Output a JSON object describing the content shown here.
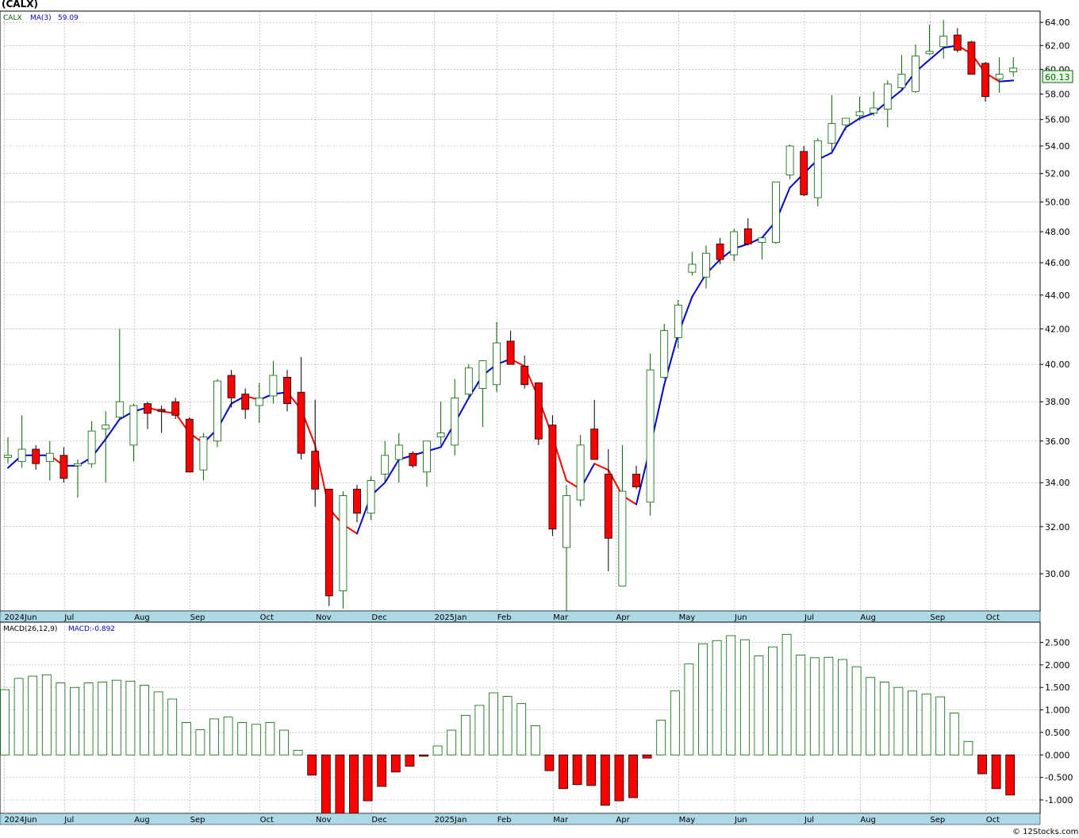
{
  "title": "(CALX)",
  "footer": "© 12Stocks.com",
  "colors": {
    "up_candle_stroke": "#006400",
    "down_candle_fill": "#ff0000",
    "ma_line_up": "#0000cc",
    "ma_line_down": "#ff0000",
    "macd_pos_stroke": "#006400",
    "macd_neg_fill": "#ff0000",
    "grid": "#a0a0a0",
    "axis_band": "#add8e6",
    "price_box_border": "#006400",
    "price_box_fill": "#e6ffe6"
  },
  "chart_data": [
    {
      "type": "candlestick",
      "name": "price",
      "legend": {
        "ticker": "CALX",
        "ma_label": "MA(3)",
        "ma_value": "59.09"
      },
      "last_price_label": "60.13",
      "ylim": [
        28.5,
        65
      ],
      "y_ticks": [
        "30.00",
        "32.00",
        "34.00",
        "36.00",
        "38.00",
        "40.00",
        "42.00",
        "44.00",
        "46.00",
        "48.00",
        "50.00",
        "52.00",
        "54.00",
        "56.00",
        "58.00",
        "60.00",
        "62.00",
        "64.00"
      ],
      "x_labels": [
        "2024Jun",
        "Jul",
        "Aug",
        "Sep",
        "Oct",
        "Nov",
        "Dec",
        "2025Jan",
        "Feb",
        "Mar",
        "Apr",
        "May",
        "Jun",
        "Jul",
        "Aug",
        "Sep",
        "Oct"
      ],
      "x_label_weeks": [
        0.2,
        4.5,
        9.5,
        13.5,
        18.5,
        22.5,
        26.5,
        31,
        35.5,
        39.5,
        44,
        48.5,
        52.5,
        57.5,
        61.5,
        66.5,
        70.5
      ],
      "candles": [
        {
          "o": 35.2,
          "h": 36.2,
          "l": 34.9,
          "c": 35.3
        },
        {
          "o": 35.0,
          "h": 37.3,
          "l": 34.7,
          "c": 35.6
        },
        {
          "o": 35.6,
          "h": 35.8,
          "l": 34.6,
          "c": 34.9
        },
        {
          "o": 35.0,
          "h": 36.0,
          "l": 34.1,
          "c": 35.4
        },
        {
          "o": 35.3,
          "h": 35.7,
          "l": 34.0,
          "c": 34.2
        },
        {
          "o": 34.8,
          "h": 35.1,
          "l": 33.3,
          "c": 34.9
        },
        {
          "o": 34.9,
          "h": 37.0,
          "l": 34.7,
          "c": 36.5
        },
        {
          "o": 36.6,
          "h": 37.5,
          "l": 34.0,
          "c": 36.8
        },
        {
          "o": 37.2,
          "h": 42.0,
          "l": 37.1,
          "c": 38.0
        },
        {
          "o": 35.8,
          "h": 37.9,
          "l": 35.0,
          "c": 37.8
        },
        {
          "o": 37.9,
          "h": 38.0,
          "l": 36.6,
          "c": 37.4
        },
        {
          "o": 37.6,
          "h": 37.8,
          "l": 36.4,
          "c": 37.5
        },
        {
          "o": 38.0,
          "h": 38.2,
          "l": 37.1,
          "c": 37.3
        },
        {
          "o": 37.1,
          "h": 37.2,
          "l": 34.5,
          "c": 34.5
        },
        {
          "o": 34.6,
          "h": 36.4,
          "l": 34.1,
          "c": 36.2
        },
        {
          "o": 36.0,
          "h": 39.2,
          "l": 35.7,
          "c": 39.1
        },
        {
          "o": 39.4,
          "h": 39.7,
          "l": 37.7,
          "c": 38.2
        },
        {
          "o": 38.4,
          "h": 38.7,
          "l": 37.1,
          "c": 37.6
        },
        {
          "o": 37.8,
          "h": 39.0,
          "l": 36.9,
          "c": 38.2
        },
        {
          "o": 38.3,
          "h": 40.2,
          "l": 37.9,
          "c": 39.4
        },
        {
          "o": 39.3,
          "h": 39.7,
          "l": 37.5,
          "c": 37.9
        },
        {
          "o": 38.5,
          "h": 40.4,
          "l": 35.1,
          "c": 35.4
        },
        {
          "o": 35.5,
          "h": 38.1,
          "l": 32.9,
          "c": 33.7
        },
        {
          "o": 33.7,
          "h": 33.7,
          "l": 28.7,
          "c": 29.1
        },
        {
          "o": 29.3,
          "h": 33.6,
          "l": 28.6,
          "c": 33.4
        },
        {
          "o": 33.7,
          "h": 33.9,
          "l": 32.2,
          "c": 32.6
        },
        {
          "o": 32.6,
          "h": 34.3,
          "l": 32.3,
          "c": 34.1
        },
        {
          "o": 34.4,
          "h": 36.0,
          "l": 34.0,
          "c": 35.3
        },
        {
          "o": 35.1,
          "h": 36.4,
          "l": 34.0,
          "c": 35.8
        },
        {
          "o": 35.4,
          "h": 35.5,
          "l": 34.7,
          "c": 34.8
        },
        {
          "o": 34.5,
          "h": 36.0,
          "l": 33.8,
          "c": 36.0
        },
        {
          "o": 36.2,
          "h": 38.0,
          "l": 35.8,
          "c": 36.4
        },
        {
          "o": 35.8,
          "h": 39.2,
          "l": 35.3,
          "c": 38.2
        },
        {
          "o": 38.4,
          "h": 40.0,
          "l": 38.2,
          "c": 39.8
        },
        {
          "o": 38.7,
          "h": 40.1,
          "l": 36.7,
          "c": 40.2
        },
        {
          "o": 38.9,
          "h": 42.4,
          "l": 38.5,
          "c": 41.2
        },
        {
          "o": 41.3,
          "h": 41.9,
          "l": 40.2,
          "c": 40.0
        },
        {
          "o": 39.9,
          "h": 40.5,
          "l": 38.7,
          "c": 38.9
        },
        {
          "o": 39.0,
          "h": 39.0,
          "l": 35.8,
          "c": 36.1
        },
        {
          "o": 36.8,
          "h": 37.3,
          "l": 31.6,
          "c": 31.9
        },
        {
          "o": 31.1,
          "h": 33.9,
          "l": 28.5,
          "c": 33.4
        },
        {
          "o": 33.2,
          "h": 36.3,
          "l": 32.9,
          "c": 35.8
        },
        {
          "o": 36.6,
          "h": 38.1,
          "l": 35.1,
          "c": 35.1
        },
        {
          "o": 34.4,
          "h": 35.6,
          "l": 30.1,
          "c": 31.5
        },
        {
          "o": 29.5,
          "h": 35.8,
          "l": 29.5,
          "c": 33.6
        },
        {
          "o": 34.4,
          "h": 34.8,
          "l": 33.7,
          "c": 33.8
        },
        {
          "o": 33.1,
          "h": 40.6,
          "l": 32.5,
          "c": 39.7
        },
        {
          "o": 39.3,
          "h": 42.3,
          "l": 39.2,
          "c": 41.9
        },
        {
          "o": 41.5,
          "h": 43.7,
          "l": 40.9,
          "c": 43.4
        },
        {
          "o": 45.4,
          "h": 46.7,
          "l": 45.2,
          "c": 45.9
        },
        {
          "o": 45.1,
          "h": 47.1,
          "l": 44.4,
          "c": 46.6
        },
        {
          "o": 47.2,
          "h": 47.6,
          "l": 45.9,
          "c": 46.2
        },
        {
          "o": 46.5,
          "h": 48.2,
          "l": 46.1,
          "c": 48.0
        },
        {
          "o": 48.2,
          "h": 48.9,
          "l": 47.1,
          "c": 47.2
        },
        {
          "o": 47.3,
          "h": 47.6,
          "l": 46.2,
          "c": 47.6
        },
        {
          "o": 47.3,
          "h": 51.4,
          "l": 47.2,
          "c": 51.4
        },
        {
          "o": 51.9,
          "h": 54.1,
          "l": 51.6,
          "c": 54.0
        },
        {
          "o": 53.6,
          "h": 54.0,
          "l": 50.4,
          "c": 50.5
        },
        {
          "o": 50.3,
          "h": 54.6,
          "l": 49.7,
          "c": 54.4
        },
        {
          "o": 54.2,
          "h": 57.9,
          "l": 53.4,
          "c": 55.7
        },
        {
          "o": 55.6,
          "h": 56.1,
          "l": 55.2,
          "c": 56.1
        },
        {
          "o": 56.3,
          "h": 57.8,
          "l": 55.9,
          "c": 56.6
        },
        {
          "o": 56.5,
          "h": 58.2,
          "l": 56.3,
          "c": 56.9
        },
        {
          "o": 56.8,
          "h": 59.1,
          "l": 55.4,
          "c": 58.8
        },
        {
          "o": 58.5,
          "h": 61.2,
          "l": 58.4,
          "c": 59.6
        },
        {
          "o": 58.2,
          "h": 62.1,
          "l": 58.1,
          "c": 61.1
        },
        {
          "o": 61.3,
          "h": 63.8,
          "l": 61.2,
          "c": 61.5
        },
        {
          "o": 61.9,
          "h": 64.2,
          "l": 60.9,
          "c": 62.8
        },
        {
          "o": 62.9,
          "h": 63.5,
          "l": 61.4,
          "c": 61.6
        },
        {
          "o": 62.3,
          "h": 62.4,
          "l": 59.6,
          "c": 59.6
        },
        {
          "o": 60.5,
          "h": 60.6,
          "l": 57.4,
          "c": 57.8
        },
        {
          "o": 59.2,
          "h": 61.0,
          "l": 58.1,
          "c": 59.6
        },
        {
          "o": 59.8,
          "h": 61.0,
          "l": 59.4,
          "c": 60.1
        }
      ],
      "ma3": [
        34.7,
        35.3,
        35.3,
        35.3,
        34.8,
        34.8,
        35.2,
        36.1,
        37.1,
        37.5,
        37.7,
        37.5,
        37.4,
        36.4,
        35.9,
        36.6,
        37.9,
        38.3,
        38.1,
        38.4,
        38.5,
        37.6,
        35.8,
        32.8,
        32.1,
        31.7,
        33.4,
        34.0,
        35.1,
        35.3,
        35.5,
        35.7,
        36.9,
        38.2,
        39.4,
        40.0,
        40.3,
        39.9,
        38.2,
        36.2,
        34.1,
        33.7,
        34.9,
        34.6,
        33.4,
        33.0,
        35.7,
        38.9,
        41.7,
        43.9,
        45.3,
        46.2,
        46.9,
        47.2,
        47.6,
        48.7,
        51.0,
        52.0,
        53.0,
        53.5,
        55.4,
        56.1,
        56.5,
        57.4,
        58.3,
        59.8,
        60.8,
        61.8,
        62.0,
        61.3,
        59.7,
        59.0,
        59.09
      ]
    },
    {
      "type": "bar",
      "name": "macd",
      "legend": {
        "label": "MACD(26,12,9)",
        "value_label": "MACD:-0.892"
      },
      "ylim": [
        -1.3,
        2.95
      ],
      "y_ticks": [
        "2.500",
        "2.000",
        "1.500",
        "1.000",
        "0.500",
        "0.000",
        "-0.500",
        "-1.000"
      ],
      "x_labels": [
        "2024Jun",
        "Jul",
        "Aug",
        "Sep",
        "Oct",
        "Nov",
        "Dec",
        "2025Jan",
        "Feb",
        "Mar",
        "Apr",
        "May",
        "Jun",
        "Jul",
        "Aug",
        "Sep",
        "Oct"
      ],
      "values": [
        1.45,
        1.7,
        1.75,
        1.78,
        1.6,
        1.5,
        1.6,
        1.62,
        1.66,
        1.64,
        1.55,
        1.4,
        1.24,
        0.72,
        0.56,
        0.8,
        0.84,
        0.72,
        0.68,
        0.72,
        0.55,
        0.1,
        -0.45,
        -1.3,
        -1.35,
        -1.3,
        -1.02,
        -0.7,
        -0.38,
        -0.25,
        -0.03,
        0.2,
        0.55,
        0.88,
        1.1,
        1.38,
        1.3,
        1.14,
        0.65,
        -0.35,
        -0.75,
        -0.66,
        -0.68,
        -1.12,
        -1.02,
        -0.95,
        -0.07,
        0.77,
        1.42,
        2.02,
        2.47,
        2.54,
        2.65,
        2.56,
        2.2,
        2.4,
        2.68,
        2.22,
        2.16,
        2.17,
        2.12,
        1.96,
        1.72,
        1.62,
        1.5,
        1.42,
        1.35,
        1.29,
        0.93,
        0.3,
        -0.42,
        -0.75,
        -0.892
      ]
    }
  ]
}
